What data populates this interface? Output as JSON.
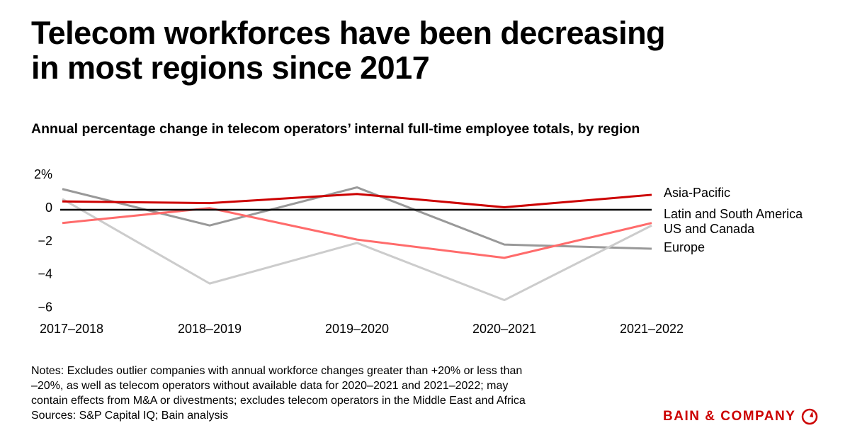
{
  "title_line1": "Telecom workforces have been decreasing",
  "title_line2": "in most regions since 2017",
  "subtitle": "Annual percentage change in telecom operators’ internal full-time employee totals, by region",
  "notes": [
    "Notes: Excludes outlier companies with annual workforce changes greater than +20% or less than",
    "–20%, as well as telecom operators without available data for 2020–2021 and 2021–2022; may",
    "contain effects from M&A or divestments; excludes telecom operators in the Middle East and Africa",
    "Sources: S&P Capital IQ; Bain analysis"
  ],
  "logo": {
    "text": "BAIN & COMPANY",
    "color": "#cc0000"
  },
  "chart_data": {
    "type": "line",
    "categories": [
      "2017–2018",
      "2018–2019",
      "2019–2020",
      "2020–2021",
      "2021–2022"
    ],
    "ylim": [
      -6,
      2
    ],
    "yticks": [
      2,
      0,
      -2,
      -4,
      -6
    ],
    "ytick_labels": [
      "2%",
      "0",
      "−2",
      "−4",
      "−6"
    ],
    "grid": false,
    "zero_line": true,
    "legend_placement": "right (direct labels)",
    "series": [
      {
        "name": "Asia-Pacific",
        "color": "#cc0000",
        "values": [
          0.5,
          0.4,
          0.95,
          0.15,
          0.9
        ]
      },
      {
        "name": "Latin and South America",
        "color": "#ff6b6b",
        "values": [
          -0.8,
          0.1,
          -1.8,
          -2.9,
          -0.8
        ]
      },
      {
        "name": "US and Canada",
        "color": "#cccccc",
        "values": [
          0.65,
          -4.45,
          -2.0,
          -5.45,
          -0.95
        ]
      },
      {
        "name": "Europe",
        "color": "#999999",
        "values": [
          1.25,
          -0.95,
          1.35,
          -2.1,
          -2.35
        ]
      }
    ]
  }
}
